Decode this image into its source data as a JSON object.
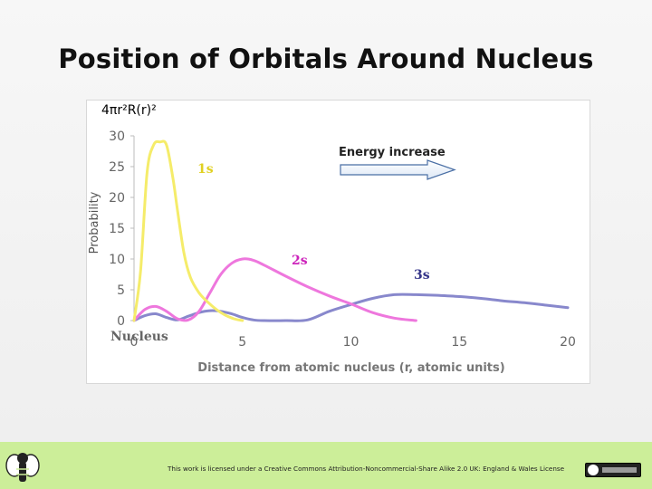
{
  "slide": {
    "title": "Position of Orbitals Around Nucleus",
    "footer_text": "This work is licensed under a Creative Commons Attribution-Noncommercial-Share Alike 2.0 UK: England & Wales License"
  },
  "chart_data": {
    "type": "line",
    "title": "",
    "ylabel": "Probability",
    "y_expression": "4πr²R(r)²",
    "xlabel": "Distance from atomic nucleus (r, atomic units)",
    "xlim": [
      0,
      20
    ],
    "ylim": [
      0,
      30
    ],
    "x_ticks": [
      "0",
      "5",
      "10",
      "15",
      "20"
    ],
    "y_ticks": [
      "0",
      "5",
      "10",
      "15",
      "20",
      "25",
      "30"
    ],
    "grid": false,
    "annotations": {
      "nucleus": "Nucleus",
      "energy": "Energy increase"
    },
    "series": [
      {
        "name": "1s",
        "color": "#f5ec6a",
        "label_color": "#e0d020",
        "x": [
          0,
          0.3,
          0.6,
          0.9,
          1.2,
          1.5,
          1.8,
          2.0,
          2.3,
          2.6,
          3.0,
          3.4,
          3.8,
          4.2,
          4.6,
          5.0
        ],
        "y": [
          0,
          8,
          24,
          28.5,
          29,
          28.5,
          23,
          18,
          11,
          7,
          4.5,
          3,
          1.8,
          0.9,
          0.3,
          0
        ]
      },
      {
        "name": "2s",
        "color": "#ee77dd",
        "label_color": "#cc22bb",
        "x": [
          0,
          0.5,
          1.0,
          1.5,
          2.0,
          2.5,
          3.0,
          3.5,
          4.0,
          4.5,
          5.0,
          5.5,
          6.0,
          7.0,
          8.0,
          9.0,
          10.0,
          11.0,
          12.0,
          13.0
        ],
        "y": [
          0,
          1.8,
          2.3,
          1.5,
          0.3,
          0.1,
          1.5,
          4.5,
          7.5,
          9.3,
          10.0,
          9.8,
          9.0,
          7.2,
          5.5,
          4.0,
          2.7,
          1.3,
          0.4,
          0
        ]
      },
      {
        "name": "3s",
        "color": "#8888cc",
        "label_color": "#333388",
        "x": [
          0,
          0.5,
          1.0,
          1.5,
          2.0,
          2.5,
          3.0,
          3.5,
          4.0,
          4.5,
          5.0,
          5.5,
          6.0,
          7.0,
          8.0,
          9.0,
          10.0,
          11.0,
          12.0,
          13.0,
          14.0,
          15.0,
          16.0,
          17.0,
          18.0,
          19.0,
          20.0
        ],
        "y": [
          0,
          0.8,
          1.1,
          0.5,
          0.1,
          0.7,
          1.3,
          1.6,
          1.5,
          1.1,
          0.5,
          0.1,
          0,
          0,
          0.1,
          1.5,
          2.6,
          3.6,
          4.2,
          4.2,
          4.1,
          3.9,
          3.6,
          3.2,
          2.9,
          2.5,
          2.1
        ]
      }
    ]
  }
}
